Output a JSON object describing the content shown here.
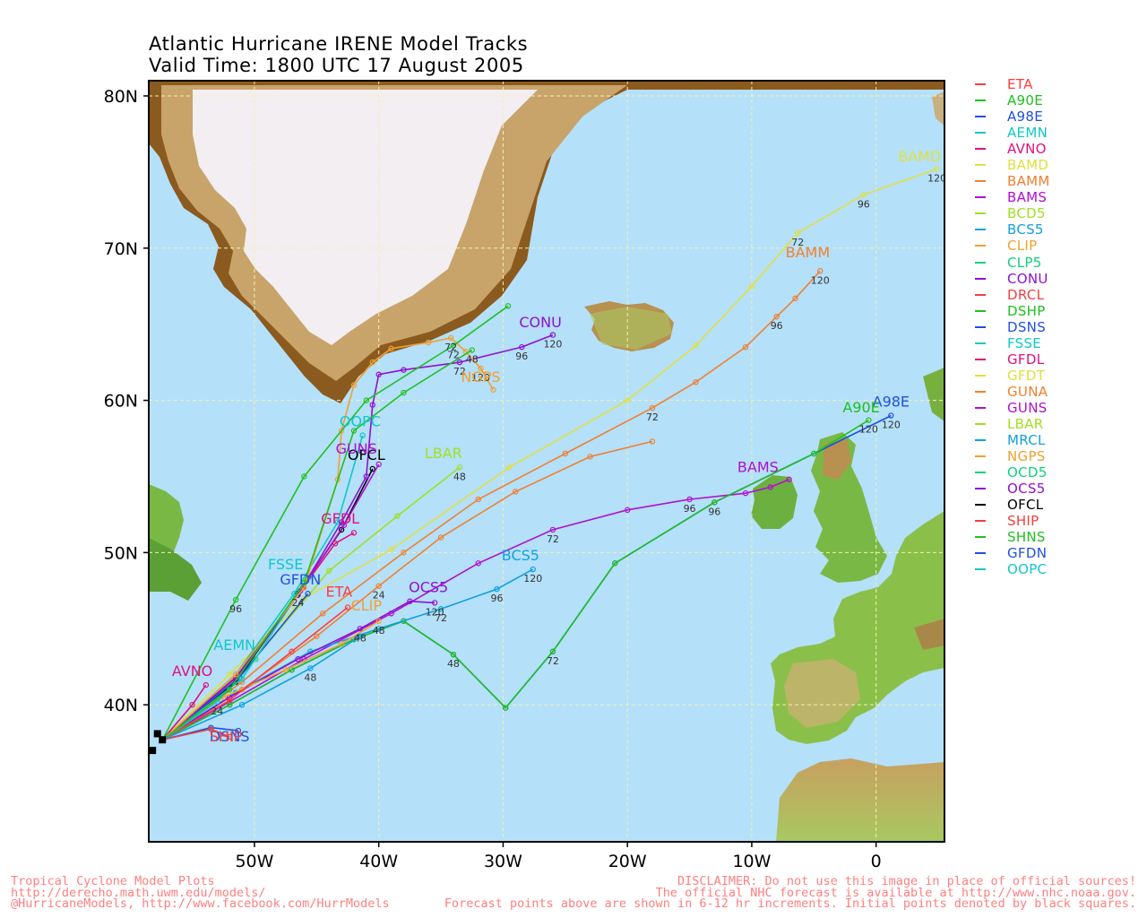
{
  "title": {
    "line1": "Atlantic Hurricane IRENE Model Tracks",
    "line2": "Valid Time: 1800 UTC 17 August 2005"
  },
  "axes": {
    "y_ticks": [
      {
        "label": "80N",
        "lat": 80
      },
      {
        "label": "70N",
        "lat": 70
      },
      {
        "label": "60N",
        "lat": 60
      },
      {
        "label": "50N",
        "lat": 50
      },
      {
        "label": "40N",
        "lat": 40
      }
    ],
    "x_ticks": [
      {
        "label": "50W",
        "lon": -50
      },
      {
        "label": "40W",
        "lon": -40
      },
      {
        "label": "30W",
        "lon": -30
      },
      {
        "label": "20W",
        "lon": -20
      },
      {
        "label": "10W",
        "lon": -10
      },
      {
        "label": "0",
        "lon": 0
      }
    ],
    "lon_range": [
      -58.5,
      5.5
    ],
    "lat_range": [
      31,
      81
    ],
    "grid": true,
    "projection": "cylindrical"
  },
  "colors": {
    "ocean": "#b4e0fa",
    "grid": "#f5f0b0",
    "legend_dash": "#333333"
  },
  "legend": [
    {
      "name": "ETA",
      "color": "#ff3c3c"
    },
    {
      "name": "A90E",
      "color": "#20c020"
    },
    {
      "name": "A98E",
      "color": "#2050e0"
    },
    {
      "name": "AEMN",
      "color": "#10c8c8"
    },
    {
      "name": "AVNO",
      "color": "#e0107f"
    },
    {
      "name": "BAMD",
      "color": "#e0e040"
    },
    {
      "name": "BAMM",
      "color": "#f08030"
    },
    {
      "name": "BAMS",
      "color": "#b010d0"
    },
    {
      "name": "BCD5",
      "color": "#a0e020"
    },
    {
      "name": "BCS5",
      "color": "#10a0e0"
    },
    {
      "name": "CLIP",
      "color": "#f0a030"
    },
    {
      "name": "CLP5",
      "color": "#10d080"
    },
    {
      "name": "CONU",
      "color": "#9010d0"
    },
    {
      "name": "DRCL",
      "color": "#f04040"
    },
    {
      "name": "DSHP",
      "color": "#20c020"
    },
    {
      "name": "DSNS",
      "color": "#2050e0"
    },
    {
      "name": "FSSE",
      "color": "#10c8c8"
    },
    {
      "name": "GFDL",
      "color": "#e0107f"
    },
    {
      "name": "GFDT",
      "color": "#e0e040"
    },
    {
      "name": "GUNA",
      "color": "#f08030"
    },
    {
      "name": "GUNS",
      "color": "#b010d0"
    },
    {
      "name": "LBAR",
      "color": "#a0e020"
    },
    {
      "name": "MRCL",
      "color": "#10a0e0"
    },
    {
      "name": "NGPS",
      "color": "#f0a030"
    },
    {
      "name": "OCD5",
      "color": "#10d080"
    },
    {
      "name": "OCS5",
      "color": "#9010d0"
    },
    {
      "name": "OFCL",
      "color": "#000000"
    },
    {
      "name": "SHIP",
      "color": "#f04040"
    },
    {
      "name": "SHNS",
      "color": "#20c020"
    },
    {
      "name": "GFDN",
      "color": "#2050e0"
    },
    {
      "name": "OOPC",
      "color": "#10c8c8"
    }
  ],
  "initial_points": [
    [
      -57.8,
      38.1
    ],
    [
      -57.4,
      37.7
    ],
    [
      -58.2,
      37.0
    ]
  ],
  "tracks": [
    {
      "name": "BAMD",
      "color": "#e0e040",
      "points": [
        [
          -57.4,
          37.7
        ],
        [
          -52,
          42
        ],
        [
          -46,
          47
        ],
        [
          -39,
          50.2
        ],
        [
          -29.5,
          55.6
        ],
        [
          -20,
          60
        ],
        [
          -14.5,
          63.6
        ],
        [
          -10,
          67.5
        ],
        [
          -6.3,
          71
        ],
        [
          -1,
          73.5
        ],
        [
          4.9,
          75.2
        ]
      ],
      "hours": [
        {
          "i": 8,
          "h": "72"
        },
        {
          "i": 9,
          "h": "96"
        },
        {
          "i": 10,
          "h": "120"
        }
      ],
      "label": "BAMD",
      "label_pos": [
        3.5,
        75.7
      ]
    },
    {
      "name": "BAMM",
      "color": "#f08030",
      "points": [
        [
          -57.4,
          37.7
        ],
        [
          -51,
          41.5
        ],
        [
          -44.5,
          46
        ],
        [
          -38,
          50
        ],
        [
          -32,
          53.5
        ],
        [
          -25,
          56.5
        ],
        [
          -18,
          59.5
        ],
        [
          -14.5,
          61.2
        ],
        [
          -10.5,
          63.5
        ],
        [
          -8,
          65.5
        ],
        [
          -6.5,
          66.7
        ],
        [
          -4.5,
          68.5
        ]
      ],
      "hours": [
        {
          "i": 6,
          "h": "72"
        },
        {
          "i": 9,
          "h": "96"
        },
        {
          "i": 11,
          "h": "120"
        }
      ],
      "label": "BAMM",
      "label_pos": [
        -5.5,
        69.4
      ]
    },
    {
      "name": "GUNA",
      "color": "#f08030",
      "points": [
        [
          -57.4,
          37.7
        ],
        [
          -51,
          41
        ],
        [
          -45,
          44.5
        ],
        [
          -40,
          47.8
        ],
        [
          -35,
          51
        ],
        [
          -29,
          54
        ],
        [
          -23,
          56.3
        ],
        [
          -18,
          57.3
        ]
      ],
      "hours": [
        {
          "i": 3,
          "h": "24"
        }
      ],
      "label": null
    },
    {
      "name": "BAMS",
      "color": "#b010d0",
      "points": [
        [
          -57.4,
          37.7
        ],
        [
          -52,
          40.2
        ],
        [
          -46,
          43
        ],
        [
          -39,
          46
        ],
        [
          -32,
          49.3
        ],
        [
          -26,
          51.5
        ],
        [
          -20,
          52.8
        ],
        [
          -15,
          53.5
        ],
        [
          -10.5,
          53.9
        ],
        [
          -8.5,
          54.3
        ],
        [
          -7,
          54.8
        ]
      ],
      "hours": [
        {
          "i": 5,
          "h": "72"
        },
        {
          "i": 7,
          "h": "96"
        }
      ],
      "label": "BAMS",
      "label_pos": [
        -9.5,
        55.3
      ]
    },
    {
      "name": "A98E",
      "color": "#2050e0",
      "points": [
        [
          -57.4,
          37.7
        ],
        [
          -52,
          40
        ],
        [
          -47,
          42.3
        ],
        [
          -42,
          44.3
        ],
        [
          -38,
          45.5
        ],
        [
          -34,
          43.3
        ],
        [
          -29.8,
          39.8
        ],
        [
          -26,
          43.5
        ],
        [
          -21,
          49.3
        ],
        [
          -13,
          53.3
        ],
        [
          -5,
          56.5
        ],
        [
          1.2,
          59
        ]
      ],
      "hours": [
        {
          "i": 5,
          "h": "48"
        },
        {
          "i": 7,
          "h": "72"
        },
        {
          "i": 9,
          "h": "96"
        },
        {
          "i": 11,
          "h": "120"
        }
      ],
      "label": "A98E",
      "label_pos": [
        1.2,
        59.6
      ]
    },
    {
      "name": "A90E",
      "color": "#20c020",
      "points": [
        [
          -57.4,
          37.7
        ],
        [
          -52,
          40
        ],
        [
          -47,
          42.3
        ],
        [
          -42,
          44.3
        ],
        [
          -38,
          45.5
        ],
        [
          -34,
          43.3
        ],
        [
          -29.8,
          39.8
        ],
        [
          -26,
          43.5
        ],
        [
          -21,
          49.3
        ],
        [
          -13,
          53.3
        ],
        [
          -5,
          56.5
        ],
        [
          -0.6,
          58.7
        ]
      ],
      "hours": [
        {
          "i": 11,
          "h": "120"
        }
      ],
      "label": "A90E",
      "label_pos": [
        -1.2,
        59.2
      ]
    },
    {
      "name": "BCS5",
      "color": "#10a0e0",
      "points": [
        [
          -57.4,
          37.7
        ],
        [
          -51.5,
          40.8
        ],
        [
          -45.5,
          43.5
        ],
        [
          -40,
          45
        ],
        [
          -35,
          46.3
        ],
        [
          -30.5,
          47.6
        ],
        [
          -27.6,
          48.9
        ]
      ],
      "hours": [
        {
          "i": 4,
          "h": "72"
        },
        {
          "i": 5,
          "h": "96"
        },
        {
          "i": 6,
          "h": "120"
        }
      ],
      "label": "BCS5",
      "label_pos": [
        -28.6,
        49.5
      ]
    },
    {
      "name": "OCS5",
      "color": "#9010d0",
      "points": [
        [
          -57.4,
          37.7
        ],
        [
          -52,
          40.5
        ],
        [
          -46.5,
          43
        ],
        [
          -41.5,
          45
        ],
        [
          -37.5,
          46.8
        ],
        [
          -35.5,
          46.7
        ]
      ],
      "hours": [
        {
          "i": 3,
          "h": "48"
        },
        {
          "i": 5,
          "h": "120"
        }
      ],
      "label": "OCS5",
      "label_pos": [
        -36,
        47.4
      ]
    },
    {
      "name": "CLIP",
      "color": "#f0a030",
      "points": [
        [
          -57.4,
          37.7
        ],
        [
          -52.5,
          40.5
        ],
        [
          -47.5,
          42.3
        ],
        [
          -43,
          44
        ],
        [
          -40,
          45.5
        ]
      ],
      "hours": [
        {
          "i": 4,
          "h": "48"
        }
      ],
      "label": "CLIP",
      "label_pos": [
        -41,
        46.2
      ]
    },
    {
      "name": "ETA",
      "color": "#ff3c3c",
      "points": [
        [
          -57.4,
          37.7
        ],
        [
          -52,
          40.3
        ],
        [
          -47,
          43.5
        ],
        [
          -42.5,
          46.4
        ]
      ],
      "hours": [],
      "label": "ETA",
      "label_pos": [
        -43.2,
        47.1
      ]
    },
    {
      "name": "AVNO",
      "color": "#e0107f",
      "points": [
        [
          -57.4,
          37.7
        ],
        [
          -55,
          40
        ],
        [
          -53.9,
          41.3
        ]
      ],
      "hours": [],
      "label": "AVNO",
      "label_pos": [
        -55,
        41.9
      ]
    },
    {
      "name": "AEMN",
      "color": "#10c8c8",
      "points": [
        [
          -57.4,
          37.7
        ],
        [
          -53,
          40.2
        ],
        [
          -49.9,
          43
        ]
      ],
      "hours": [
        {
          "i": 1,
          "h": "24"
        }
      ],
      "label": "AEMN",
      "label_pos": [
        -51.6,
        43.6
      ]
    },
    {
      "name": "LBAR",
      "color": "#a0e020",
      "points": [
        [
          -57.4,
          37.7
        ],
        [
          -50,
          43
        ],
        [
          -44,
          48.8
        ],
        [
          -38.5,
          52.4
        ],
        [
          -33.5,
          55.6
        ]
      ],
      "hours": [
        {
          "i": 4,
          "h": "48"
        }
      ],
      "label": "LBAR",
      "label_pos": [
        -34.8,
        56.2
      ]
    },
    {
      "name": "OFCL",
      "color": "#000000",
      "points": [
        [
          -57.4,
          37.7
        ],
        [
          -51.5,
          41.5
        ],
        [
          -46.5,
          47.3
        ],
        [
          -43,
          51.5
        ],
        [
          -40.5,
          55.5
        ]
      ],
      "hours": [
        {
          "i": 2,
          "h": "24"
        }
      ],
      "label": "OFCL",
      "label_pos": [
        -41,
        56.1
      ]
    },
    {
      "name": "GUNS",
      "color": "#b010d0",
      "points": [
        [
          -57.4,
          37.7
        ],
        [
          -51.5,
          41.6
        ],
        [
          -46.3,
          47.5
        ],
        [
          -42.8,
          51.8
        ],
        [
          -40,
          55.8
        ]
      ],
      "hours": [],
      "label": "GUNS",
      "label_pos": [
        -41.8,
        56.5
      ]
    },
    {
      "name": "GFDL",
      "color": "#e0107f",
      "points": [
        [
          -57.4,
          37.7
        ],
        [
          -51.3,
          41.9
        ],
        [
          -46.1,
          47.7
        ],
        [
          -43.5,
          50.6
        ],
        [
          -42,
          51.3
        ]
      ],
      "hours": [],
      "label": "GFDL",
      "label_pos": [
        -43.1,
        51.9
      ]
    },
    {
      "name": "GFDN",
      "color": "#2050e0",
      "points": [
        [
          -57.4,
          37.7
        ],
        [
          -51.2,
          41.8
        ],
        [
          -45.7,
          47.3
        ]
      ],
      "hours": [],
      "label": "GFDN",
      "label_pos": [
        -46.3,
        47.9
      ]
    },
    {
      "name": "FSSE",
      "color": "#10c8c8",
      "points": [
        [
          -57.4,
          37.7
        ],
        [
          -51,
          41.7
        ],
        [
          -45.6,
          48.4
        ]
      ],
      "hours": [],
      "label": "FSSE",
      "label_pos": [
        -47.5,
        48.9
      ]
    },
    {
      "name": "OOPC",
      "color": "#10c8c8",
      "points": [
        [
          -57.4,
          37.7
        ],
        [
          -51.5,
          42
        ],
        [
          -46.8,
          47.3
        ],
        [
          -43.3,
          52
        ],
        [
          -41.3,
          57.7
        ]
      ],
      "hours": [],
      "label": "OOPC",
      "label_pos": [
        -41.5,
        58.3
      ]
    },
    {
      "name": "CONU",
      "color": "#9010d0",
      "points": [
        [
          -57.4,
          37.7
        ],
        [
          -51.5,
          41.8
        ],
        [
          -46.5,
          47.2
        ],
        [
          -43,
          52
        ],
        [
          -41,
          55
        ],
        [
          -40.5,
          59.7
        ],
        [
          -40,
          61.7
        ],
        [
          -38,
          62
        ],
        [
          -33.5,
          62.5
        ],
        [
          -28.5,
          63.5
        ],
        [
          -26,
          64.3
        ]
      ],
      "hours": [
        {
          "i": 8,
          "h": "72"
        },
        {
          "i": 9,
          "h": "96"
        },
        {
          "i": 10,
          "h": "120"
        }
      ],
      "label": "CONU",
      "label_pos": [
        -27,
        64.8
      ]
    },
    {
      "name": "NGPS",
      "color": "#f0a030",
      "points": [
        [
          -57.4,
          37.7
        ],
        [
          -51.5,
          42
        ],
        [
          -46,
          47.7
        ],
        [
          -43.3,
          54.8
        ],
        [
          -43,
          58
        ],
        [
          -42,
          61
        ],
        [
          -40.5,
          62.5
        ],
        [
          -39,
          63.4
        ],
        [
          -36,
          63.8
        ],
        [
          -34.2,
          64.1
        ],
        [
          -33,
          63.2
        ],
        [
          -31.8,
          62.1
        ],
        [
          -30.8,
          60.7
        ]
      ],
      "hours": [
        {
          "i": 9,
          "h": "72"
        },
        {
          "i": 11,
          "h": "120"
        }
      ],
      "label": "NGPS",
      "label_pos": [
        -31.8,
        61.2
      ]
    },
    {
      "name": "DSHP",
      "color": "#20c020",
      "points": [
        [
          -57.4,
          37.7
        ],
        [
          -51.5,
          46.9
        ],
        [
          -46,
          55
        ],
        [
          -41,
          60
        ],
        [
          -34,
          63.6
        ],
        [
          -29.6,
          66.2
        ]
      ],
      "hours": [
        {
          "i": 1,
          "h": "96"
        },
        {
          "i": 4,
          "h": "72"
        }
      ],
      "label": null
    },
    {
      "name": "SHNS",
      "color": "#20c020",
      "points": [
        [
          -57.4,
          37.7
        ],
        [
          -52,
          41
        ],
        [
          -46,
          48
        ],
        [
          -42,
          58
        ],
        [
          -38,
          60.5
        ],
        [
          -32.5,
          63.3
        ]
      ],
      "hours": [
        {
          "i": 5,
          "h": "48"
        }
      ],
      "label": null
    },
    {
      "name": "DSNS",
      "color": "#2050e0",
      "points": [
        [
          -57.4,
          37.7
        ],
        [
          -53.5,
          38.5
        ],
        [
          -51.3,
          38.3
        ]
      ],
      "hours": [],
      "label": "DSNS",
      "label_pos": [
        -52,
        37.6
      ]
    },
    {
      "name": "SHIP",
      "color": "#f04040",
      "points": [
        [
          -57.4,
          37.7
        ],
        [
          -53.5,
          38.4
        ],
        [
          -52,
          37.9
        ]
      ],
      "hours": [],
      "label": "SHIP",
      "label_pos": [
        -52.3,
        37.6
      ]
    },
    {
      "name": "MRCL",
      "color": "#10a0e0",
      "points": [
        [
          -57.4,
          37.7
        ],
        [
          -51,
          40
        ],
        [
          -45.5,
          42.4
        ],
        [
          -41.5,
          44.5
        ]
      ],
      "hours": [
        {
          "i": 2,
          "h": "48"
        }
      ],
      "label": null
    }
  ]
}
